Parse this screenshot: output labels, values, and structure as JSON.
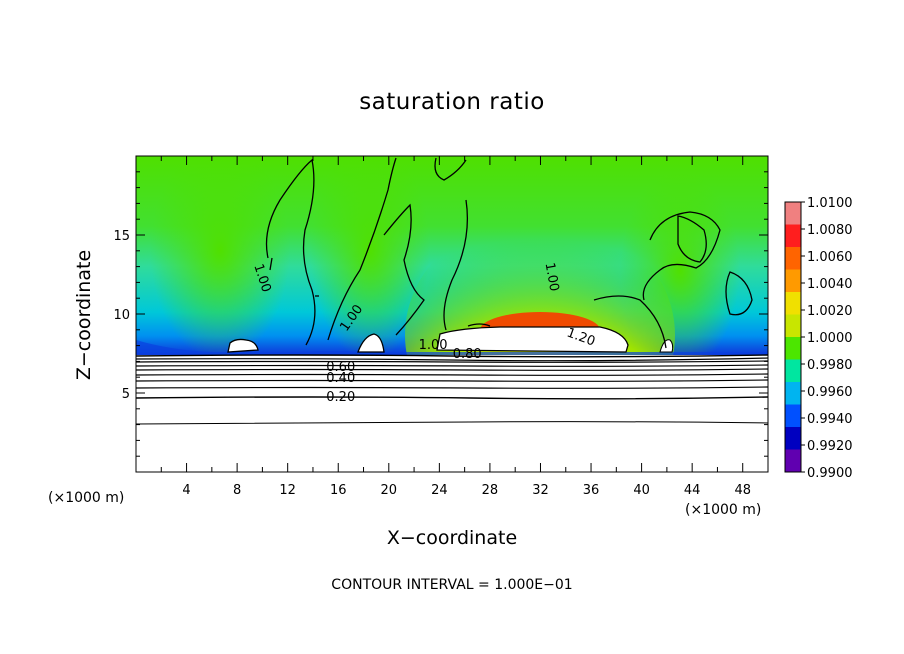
{
  "chart_data": {
    "type": "heatmap",
    "title": "saturation ratio",
    "xlabel": "X−coordinate",
    "ylabel": "Z−coordinate",
    "x_units_left": "(×1000 m)",
    "x_units_right": "(×1000 m)",
    "footer": "CONTOUR INTERVAL = 1.000E−01",
    "xlim": [
      0,
      50
    ],
    "ylim": [
      0,
      20
    ],
    "x_ticks": [
      "4",
      "8",
      "12",
      "16",
      "20",
      "24",
      "28",
      "32",
      "36",
      "40",
      "44",
      "48"
    ],
    "x_tick_values": [
      4,
      8,
      12,
      16,
      20,
      24,
      28,
      32,
      36,
      40,
      44,
      48
    ],
    "y_ticks": [
      "5",
      "10",
      "15"
    ],
    "y_tick_values": [
      5,
      10,
      15
    ],
    "colorbar": {
      "labels": [
        "1.0100",
        "1.0080",
        "1.0060",
        "1.0040",
        "1.0020",
        "1.0000",
        "0.9980",
        "0.9960",
        "0.9940",
        "0.9920",
        "0.9900"
      ],
      "colors": [
        "#f08080",
        "#ff1e1e",
        "#ff6400",
        "#ff9a00",
        "#f0e000",
        "#c8e600",
        "#4ce600",
        "#00e6a0",
        "#00b4f0",
        "#0050ff",
        "#0000c0",
        "#6000b0"
      ]
    },
    "contour_labels": [
      {
        "text": "1.00",
        "x": 9.7,
        "y": 12.2,
        "rotate": 72
      },
      {
        "text": "1.00",
        "x": 17.3,
        "y": 9.6,
        "rotate": -55
      },
      {
        "text": "1.00",
        "x": 32.6,
        "y": 12.3,
        "rotate": 80
      },
      {
        "text": "1.00",
        "x": 23.5,
        "y": 7.8,
        "rotate": 0
      },
      {
        "text": "1.20",
        "x": 35.1,
        "y": 8.3,
        "rotate": 20
      },
      {
        "text": "0.80",
        "x": 26.2,
        "y": 7.2,
        "rotate": 0
      },
      {
        "text": "0.60",
        "x": 16.2,
        "y": 6.4,
        "rotate": 0
      },
      {
        "text": "0.40",
        "x": 16.2,
        "y": 5.7,
        "rotate": 0
      },
      {
        "text": "0.20",
        "x": 16.2,
        "y": 4.5,
        "rotate": 0
      }
    ]
  }
}
